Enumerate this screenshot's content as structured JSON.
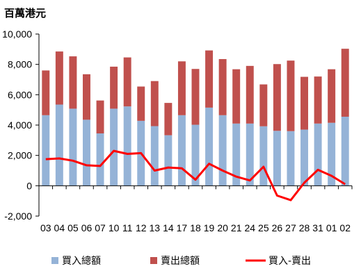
{
  "chart_data": {
    "type": "bar",
    "stacked": true,
    "title": "百萬港元",
    "categories": [
      "03",
      "04",
      "05",
      "06",
      "07",
      "10",
      "11",
      "12",
      "13",
      "14",
      "17",
      "18",
      "19",
      "20",
      "21",
      "24",
      "25",
      "26",
      "27",
      "28",
      "31",
      "01",
      "02"
    ],
    "ylim": [
      -2000,
      10000
    ],
    "yticks": [
      "-2,000",
      "0",
      "2,000",
      "4,000",
      "6,000",
      "8,000",
      "10,000"
    ],
    "ytick_values": [
      -2000,
      0,
      2000,
      4000,
      6000,
      8000,
      10000
    ],
    "grid": false,
    "legend_position": "bottom",
    "series": [
      {
        "name": "買入總額",
        "type": "bar",
        "color": "#95b3d7",
        "values": [
          4650,
          5350,
          5080,
          4350,
          3450,
          5080,
          5230,
          4280,
          3930,
          3330,
          4650,
          4020,
          5150,
          4650,
          4100,
          4100,
          3920,
          3620,
          3600,
          3700,
          4100,
          4150,
          4550
        ]
      },
      {
        "name": "賣出總額",
        "type": "bar",
        "color": "#c0504d",
        "values": [
          2950,
          3500,
          3450,
          3000,
          2170,
          2770,
          3230,
          2260,
          2970,
          2130,
          3550,
          3680,
          3770,
          3700,
          3580,
          3800,
          2760,
          4400,
          4650,
          3480,
          3100,
          3530,
          4480
        ]
      },
      {
        "name": "買入-賣出",
        "type": "line",
        "color": "#ff0000",
        "values": [
          1750,
          1800,
          1650,
          1350,
          1300,
          2300,
          2100,
          2150,
          1000,
          1200,
          1150,
          400,
          1450,
          1000,
          600,
          350,
          1250,
          -650,
          -950,
          200,
          1050,
          650,
          100
        ]
      }
    ]
  }
}
